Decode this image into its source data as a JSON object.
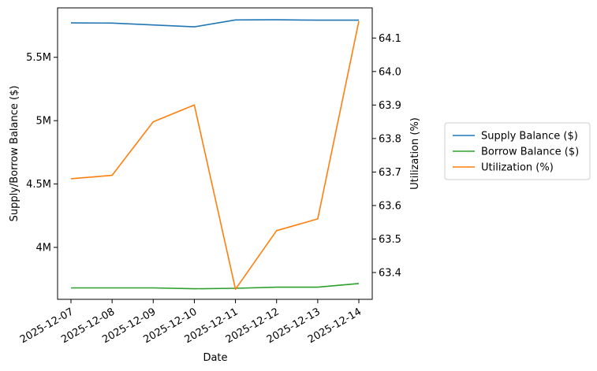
{
  "chart_data": {
    "type": "line",
    "x": [
      "2025-12-07",
      "2025-12-08",
      "2025-12-09",
      "2025-12-10",
      "2025-12-11",
      "2025-12-12",
      "2025-12-13",
      "2025-12-14"
    ],
    "xlabel": "Date",
    "ylabel_left": "Supply/Borrow Balance ($)",
    "ylabel_right": "Utilization (%)",
    "ylim_left": [
      3590000,
      5890000
    ],
    "ylim_right": [
      63.32,
      64.19
    ],
    "yticks_left": [
      {
        "value": 4000000,
        "label": "4M"
      },
      {
        "value": 4500000,
        "label": "4.5M"
      },
      {
        "value": 5000000,
        "label": "5M"
      },
      {
        "value": 5500000,
        "label": "5.5M"
      }
    ],
    "yticks_right": [
      {
        "value": 63.4,
        "label": "63.4"
      },
      {
        "value": 63.5,
        "label": "63.5"
      },
      {
        "value": 63.6,
        "label": "63.6"
      },
      {
        "value": 63.7,
        "label": "63.7"
      },
      {
        "value": 63.8,
        "label": "63.8"
      },
      {
        "value": 63.9,
        "label": "63.9"
      },
      {
        "value": 64.0,
        "label": "64.0"
      },
      {
        "value": 64.1,
        "label": "64.1"
      }
    ],
    "series": [
      {
        "name": "Supply Balance ($)",
        "axis": "left",
        "color": "#1f77b4",
        "values": [
          5771000,
          5770000,
          5755000,
          5740000,
          5795000,
          5796000,
          5793000,
          5793000
        ]
      },
      {
        "name": "Borrow Balance ($)",
        "axis": "left",
        "color": "#2ca02c",
        "values": [
          3680000,
          3680000,
          3680000,
          3673000,
          3677000,
          3686000,
          3686000,
          3715000
        ]
      },
      {
        "name": "Utilization (%)",
        "axis": "right",
        "color": "#ff7f0e",
        "values": [
          63.68,
          63.69,
          63.85,
          63.9,
          63.35,
          63.525,
          63.56,
          64.15
        ]
      }
    ],
    "legend": "right",
    "grid": false
  }
}
